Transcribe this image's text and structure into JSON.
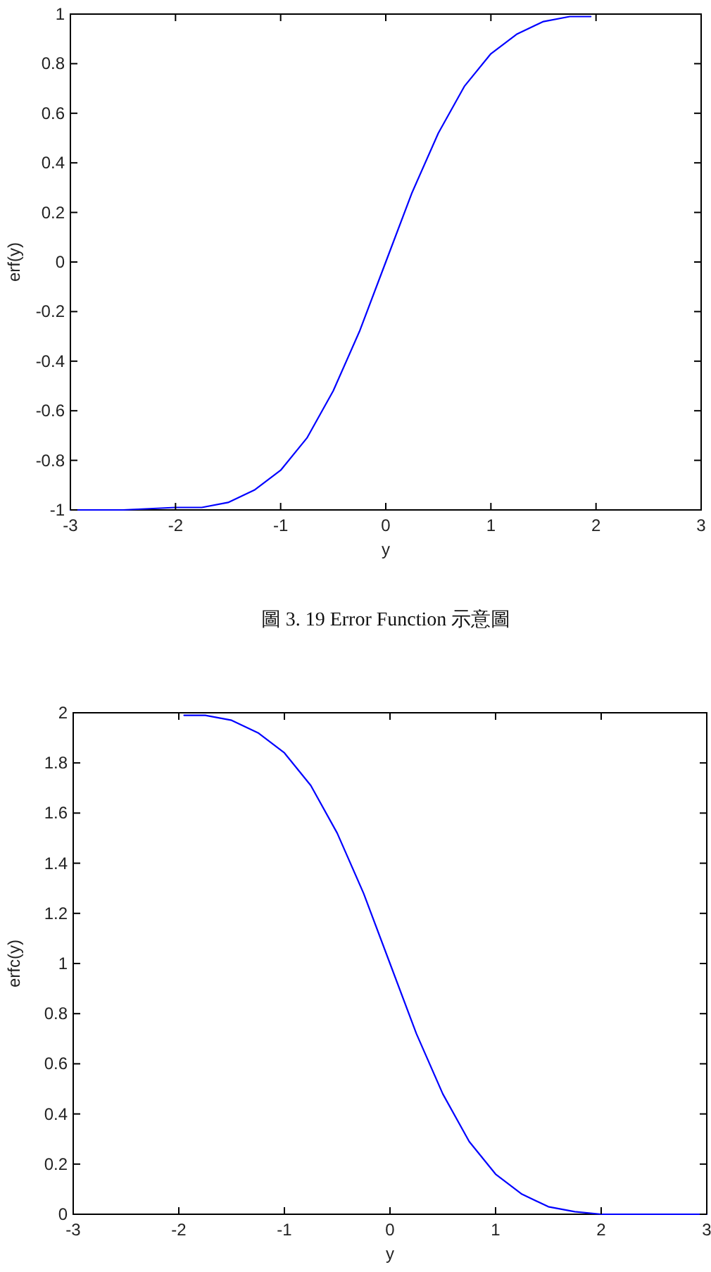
{
  "chart_data": [
    {
      "type": "line",
      "xlabel": "y",
      "ylabel": "erf(y)",
      "x": [
        -3,
        -2.5,
        -2,
        -1.75,
        -1.5,
        -1.25,
        -1,
        -0.75,
        -0.5,
        -0.25,
        0,
        0.25,
        0.5,
        0.75,
        1,
        1.25,
        1.5,
        1.75,
        1.95
      ],
      "series": [
        {
          "color": "#0000ff",
          "values": [
            -1,
            -1,
            -0.99,
            -0.99,
            -0.97,
            -0.92,
            -0.84,
            -0.71,
            -0.52,
            -0.28,
            0,
            0.28,
            0.52,
            0.71,
            0.84,
            0.92,
            0.97,
            0.99,
            0.99
          ]
        }
      ],
      "xlim": [
        -3,
        3
      ],
      "ylim": [
        -1,
        1
      ],
      "xticks": [
        -3,
        -2,
        -1,
        0,
        1,
        2,
        3
      ],
      "yticks": [
        -1,
        -0.8,
        -0.6,
        -0.4,
        -0.2,
        0,
        0.2,
        0.4,
        0.6,
        0.8,
        1
      ],
      "annotations": [
        "圖 3. 19 Error Function  示意圖"
      ]
    },
    {
      "type": "line",
      "xlabel": "y",
      "ylabel": "erfc(y)",
      "x": [
        -1.95,
        -1.75,
        -1.5,
        -1.25,
        -1,
        -0.75,
        -0.5,
        -0.25,
        0,
        0.25,
        0.5,
        0.75,
        1,
        1.25,
        1.5,
        1.75,
        2,
        2.5,
        3
      ],
      "series": [
        {
          "color": "#0000ff",
          "values": [
            1.99,
            1.99,
            1.97,
            1.92,
            1.84,
            1.71,
            1.52,
            1.28,
            1,
            0.72,
            0.48,
            0.29,
            0.16,
            0.08,
            0.03,
            0.01,
            0,
            0,
            0
          ]
        }
      ],
      "xlim": [
        -3,
        3
      ],
      "ylim": [
        0,
        2
      ],
      "xticks": [
        -3,
        -2,
        -1,
        0,
        1,
        2,
        3
      ],
      "yticks": [
        0,
        0.2,
        0.4,
        0.6,
        0.8,
        1,
        1.2,
        1.4,
        1.6,
        1.8,
        2
      ]
    }
  ]
}
